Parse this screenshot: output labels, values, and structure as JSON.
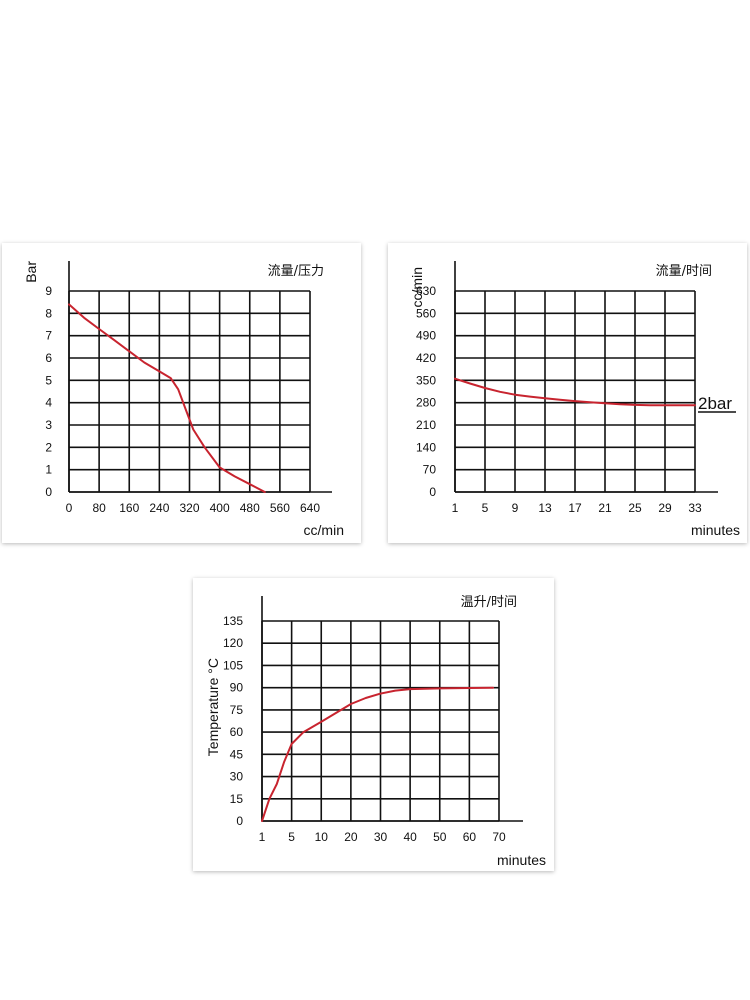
{
  "colors": {
    "curve": "#c8242f",
    "grid": "#111111",
    "background": "#ffffff"
  },
  "chart_data": [
    {
      "type": "line",
      "title": "流量/压力",
      "xlabel": "cc/min",
      "ylabel": "Bar",
      "x_ticks": [
        "0",
        "80",
        "160",
        "240",
        "320",
        "400",
        "480",
        "560",
        "640"
      ],
      "y_ticks": [
        "0",
        "1",
        "2",
        "3",
        "4",
        "5",
        "6",
        "7",
        "8",
        "9"
      ],
      "xlim": [
        0,
        640
      ],
      "ylim": [
        0,
        9
      ],
      "grid": true,
      "series": [
        {
          "x": [
            0,
            40,
            80,
            120,
            160,
            200,
            240,
            270,
            290,
            310,
            330,
            360,
            400,
            440,
            480,
            520
          ],
          "y": [
            8.4,
            7.8,
            7.3,
            6.8,
            6.3,
            5.8,
            5.4,
            5.1,
            4.6,
            3.7,
            2.8,
            2.0,
            1.1,
            0.7,
            0.35,
            0.0
          ]
        }
      ]
    },
    {
      "type": "line",
      "title": "流量/时间",
      "xlabel": "minutes",
      "ylabel": "cc/min",
      "annotation": "2bar",
      "x_ticks": [
        "1",
        "5",
        "9",
        "13",
        "17",
        "21",
        "25",
        "29",
        "33"
      ],
      "y_ticks": [
        "0",
        "70",
        "140",
        "210",
        "280",
        "350",
        "420",
        "490",
        "560",
        "630"
      ],
      "xlim": [
        1,
        33
      ],
      "ylim": [
        0,
        630
      ],
      "grid": true,
      "series": [
        {
          "x": [
            1,
            3,
            5,
            7,
            9,
            11,
            13,
            15,
            17,
            19,
            21,
            23,
            25,
            27,
            29,
            31,
            33
          ],
          "y": [
            355,
            340,
            326,
            314,
            305,
            299,
            294,
            289,
            285,
            281,
            278,
            275,
            273,
            272,
            272,
            272,
            272
          ]
        }
      ]
    },
    {
      "type": "line",
      "title": "温升/时间",
      "xlabel": "minutes",
      "ylabel": "Temperature °C",
      "x_ticks": [
        "1",
        "5",
        "10",
        "20",
        "30",
        "40",
        "50",
        "60",
        "70"
      ],
      "y_ticks": [
        "0",
        "15",
        "30",
        "45",
        "60",
        "75",
        "90",
        "105",
        "120",
        "135"
      ],
      "ylim": [
        0,
        135
      ],
      "grid": true,
      "series": [
        {
          "x": [
            1,
            2,
            3,
            4,
            5,
            7,
            10,
            15,
            20,
            25,
            30,
            35,
            40,
            50,
            60,
            68
          ],
          "y": [
            0,
            15,
            25,
            40,
            52,
            60,
            67,
            73,
            79,
            83,
            86,
            88,
            89,
            89.5,
            89.8,
            90
          ]
        }
      ]
    }
  ]
}
